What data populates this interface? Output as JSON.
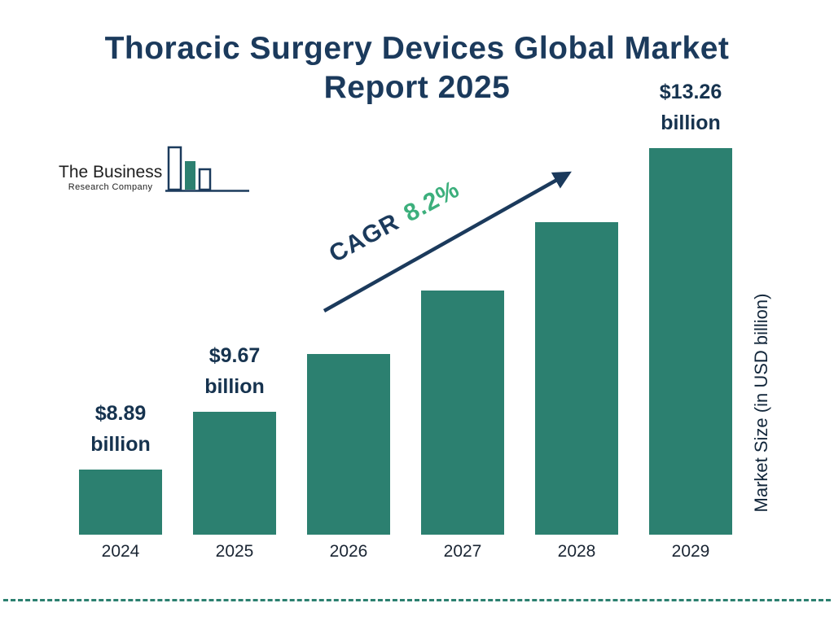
{
  "header": {
    "title_line1": "Thoracic Surgery Devices Global Market",
    "title_line2": "Report 2025"
  },
  "logo": {
    "name_line1": "The Business",
    "name_line2": "Research Company"
  },
  "cagr": {
    "label": "CAGR",
    "value": "8.2%"
  },
  "y_axis": {
    "label": "Market Size (in USD billion)"
  },
  "chart_data": {
    "type": "bar",
    "title": "Thoracic Surgery Devices Global Market Report 2025",
    "categories": [
      "2024",
      "2025",
      "2026",
      "2027",
      "2028",
      "2029"
    ],
    "values": [
      8.89,
      9.67,
      10.46,
      11.32,
      12.25,
      13.26
    ],
    "unit": "USD billion",
    "labeled_points": [
      {
        "category": "2024",
        "amount": "$8.89",
        "unit": "billion"
      },
      {
        "category": "2025",
        "amount": "$9.67",
        "unit": "billion"
      },
      {
        "category": "2029",
        "amount": "$13.26",
        "unit": "billion"
      }
    ],
    "cagr": "8.2%",
    "xlabel": "",
    "ylabel": "Market Size (in USD billion)",
    "legend": false,
    "grid": false,
    "colors": {
      "bar": "#2C8070",
      "title": "#1B3A5C",
      "value_label": "#16334F",
      "cagr_value": "#3CAF7C",
      "arrow": "#1B3A5C",
      "dashed_rule": "#2C8070"
    }
  }
}
